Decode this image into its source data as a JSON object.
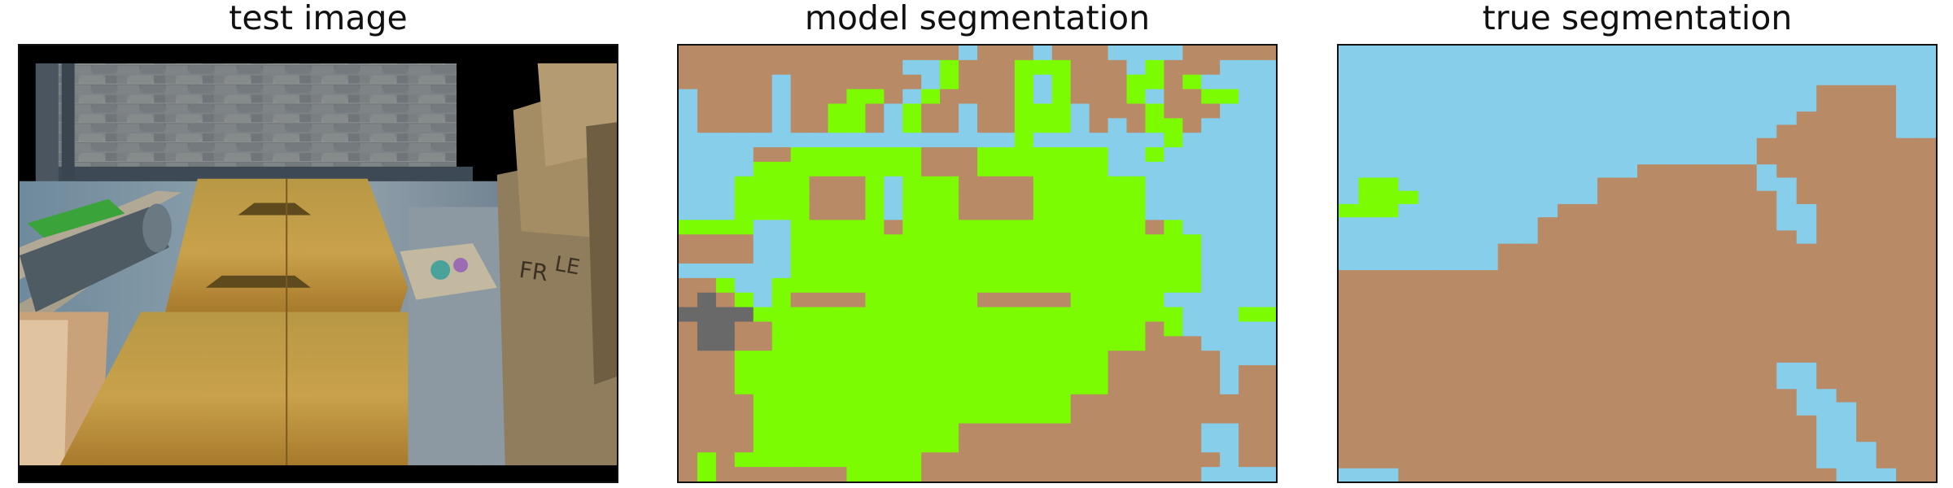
{
  "panels": [
    {
      "title": "test image"
    },
    {
      "title": "model segmentation"
    },
    {
      "title": "true segmentation"
    }
  ],
  "palette": {
    "brown": "#b98a66",
    "sky": "#87ceeb",
    "green": "#7cfc00",
    "gray": "#696969",
    "black": "#000000"
  },
  "model_segmentation": [
    "BBBBBBBBBBBBBBBSBBBSBBBSSSSBBBB",
    "BBBBBBBBBBBBSSGBBBGGGBBBSGBBBSS",
    "BBBBBSBBBBBBBSGBBBGSGBBBGGBGSSS",
    "SBBBBSBBBGGBSGBBBBGSGBBBGSBBGGS",
    "SBBBBSBBGGBSGBBSBBGGGSBBBGBBBSS",
    "SBBBBSBBGGBSGBBSBBGGGSBSBGGBSSS",
    "SSSSSSSSSSSSSSSSSSGSSSSSSSGSSSS",
    "SSSSBBGGGGGGGBBBGGGGGGGSSGSSSSS",
    "SSSSGGGGGGGGGBBBGGGGGGGSSSSSSSS",
    "SSSGGGGBBBGSGGGBBBBGGGGGGSSSSSS",
    "SSSGGGGBBBGSGGGBBBBGGGGGGSSSSSS",
    "SSSGGGGBBBGSGGGBBBBGGGGGGSSSSSS",
    "GGGGSSGGGGGBGGGGGGGGGGGGGBGSSSSS",
    "BBBBSSGGGGGGGGGGGGGGGGGGGGGGSSS",
    "BBBBSSGGGGGGGGGGGGGGGGGGGGGGSSS",
    "SSSSSSGGGGGGGGGGGGGGGGGGGGGGSSS",
    "BBGSSGGGGGGGGGGGGGGGGGGGGGGGSSS",
    "BYBGSGBBBBGGGGGGBBBBBGGGGGSSSSS",
    "YYYYGGGGGGGGGGGGGGGGGGGGGGGSSSG",
    "BYYBBGGGGGGGGGGGGGGGGGGGGBGSSSS",
    "BYYBBGGGGGGGGGGGGGGGGGGGGBBBSSS",
    "BBBGGGGGGGGGGGGGGGGGGGGBBBBBBSS",
    "BBBGGGGGGGGGGGGGGGGGGGGBBBBBBSB",
    "BBBGGGGGGGGGGGGGGGGGGGGBBBBBBSB",
    "BBBBGGGGGGGGGGGGGGGGGBBBBBBBBBB",
    "BBBBGGGGGGGGGGGGGGGGGBBBBBBBBBB",
    "BBBBGGGGGGGGGGGBBBBBBBBBBBBBSSB",
    "BBBBGGGGGGGGGGGBBBBBBBBBBBBBSSB",
    "BGBGGGGGGGGGGBBBBBBBBBBBBBBBBSB",
    "BGBBBBBBBGGGGBBBBBBBBBBBBBBBSSS"
  ],
  "true_segmentation": [
    "SSSSSSSSSSSSSSSSSSSSSSSSSSSSS",
    "SSSSSSSSSSSSSSSSSSSSSSSSSSSSS",
    "SSSSSSSSSSSSSSSSSSSSSSSSSSSSS",
    "SSSSSSSSSSSSSSSSSSSSSSSSBBBBSS",
    "SSSSSSSSSSSSSSSSSSSSSSSSBBBBSS",
    "SSSSSSSSSSSSSSSSSSSSSSSBBBBBSS",
    "SSSSSSSSSSSSSSSSSSSSSSBBBBBBSS",
    "SSSSSSSSSSSSSSSSSSSSSBBBBBBBBB",
    "SSSSSSSSSSSSSSSSSSSSSBBBBBBBBB",
    "SSSSSSSSSSSSSSSBBBBBBSBBBBBBBB",
    "SGGSSSSSSSSSSBBBBBBBBSSBBBBBBB",
    "SGGGSSSSSSSSSBBBBBBBBBSBBBBBBB",
    "GGGSSSSSSSSBBBBBBBBBBBSSBBBBBB",
    "SSSSSSSSSSBBBBBBBBBBBBSSBBBBBB",
    "SSSSSSSSSSBBBBBBBBBBBBBSBBBBBB",
    "SSSSSSSSBBBBBBBBBBBBBBBBBBBBBB",
    "SSSSSSSSBBBBBBBBBBBBBBBBBBBBBB",
    "BBBBBBBBBBBBBBBBBBBBBBBBBBBBBB",
    "BBBBBBBBBBBBBBBBBBBBBBBBBBBBBB",
    "BBBBBBBBBBBBBBBBBBBBBBBBBBBBBB",
    "BBBBBBBBBBBBBBBBBBBBBBBBBBBBBB",
    "BBBBBBBBBBBBBBBBBBBBBBBBBBBBBB",
    "BBBBBBBBBBBBBBBBBBBBBBBBBBBBBB",
    "BBBBBBBBBBBBBBBBBBBBBBBBBBBBBB",
    "BBBBBBBBBBBBBBBBBBBBBBSSBBBBBB",
    "BBBBBBBBBBBBBBBBBBBBBBSSBBBBBB",
    "BBBBBBBBBBBBBBBBBBBBBBBSSBBBBB",
    "BBBBBBBBBBBBBBBBBBBBBBBSSSBBBB",
    "BBBBBBBBBBBBBBBBBBBBBBBBSSBBBB",
    "BBBBBBBBBBBBBBBBBBBBBBBBSSBBBB",
    "BBBBBBBBBBBBBBBBBBBBBBBBSSSBBB",
    "BBBBBBBBBBBBBBBBBBBBBBBBSSSBBB",
    "SSSBBBBBBBBBBBBBBBBBBBBBBSSSBB"
  ]
}
